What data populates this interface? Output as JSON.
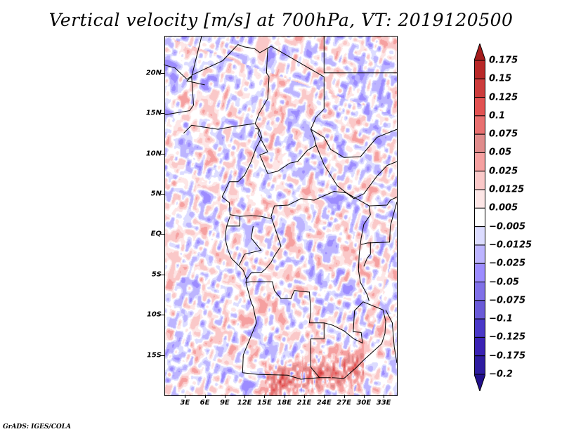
{
  "chart_data": {
    "type": "heatmap",
    "title": "Vertical velocity [m/s] at 700hPa, VT: 2019120500",
    "variable": "Vertical velocity",
    "units": "m/s",
    "level": "700hPa",
    "valid_time": "2019120500",
    "xlabel": "",
    "ylabel": "",
    "x_range_deg_lon": [
      0,
      35
    ],
    "y_range_deg_lat": [
      -20,
      24.5
    ],
    "x_ticks": [
      "3E",
      "6E",
      "9E",
      "12E",
      "15E",
      "18E",
      "21E",
      "24E",
      "27E",
      "30E",
      "33E"
    ],
    "x_tick_values": [
      3,
      6,
      9,
      12,
      15,
      18,
      21,
      24,
      27,
      30,
      33
    ],
    "y_ticks": [
      "20N",
      "15N",
      "10N",
      "5N",
      "EQ",
      "5S",
      "10S",
      "15S"
    ],
    "y_tick_values": [
      20,
      15,
      10,
      5,
      0,
      -5,
      -10,
      -15
    ],
    "colorbar": {
      "orientation": "vertical",
      "placement": "right",
      "extend": "both",
      "levels": [
        0.175,
        0.15,
        0.125,
        0.1,
        0.075,
        0.05,
        0.025,
        0.0125,
        0.005,
        -0.005,
        -0.0125,
        -0.025,
        -0.05,
        -0.075,
        -0.1,
        -0.125,
        -0.175,
        -0.2
      ],
      "labels": [
        "0.175",
        "0.15",
        "0.125",
        "0.1",
        "0.075",
        "0.05",
        "0.025",
        "0.0125",
        "0.005",
        "−0.005",
        "−0.0125",
        "−0.025",
        "−0.05",
        "−0.075",
        "−0.1",
        "−0.125",
        "−0.175",
        "−0.2"
      ],
      "colors_top_to_bottom": [
        "#a51c1c",
        "#b82828",
        "#cc3c3c",
        "#e25252",
        "#e87070",
        "#e08c8c",
        "#f5a0a0",
        "#fac8c8",
        "#fde6e6",
        "#ffffff",
        "#dcdcff",
        "#bcb4ff",
        "#9c8cff",
        "#8070e8",
        "#6a5ad8",
        "#4a38c8",
        "#3a22b4",
        "#2e1ca0",
        "#22108c"
      ]
    },
    "notes": "Field shows mostly small-amplitude mixed red/blue cells over Central Africa; strongest ascent (dark red, >0.1 m/s) over southern Angola / Zambia near 15-20S, 15-30E."
  },
  "footer": {
    "credit": "GrADS: IGES/COLA"
  }
}
